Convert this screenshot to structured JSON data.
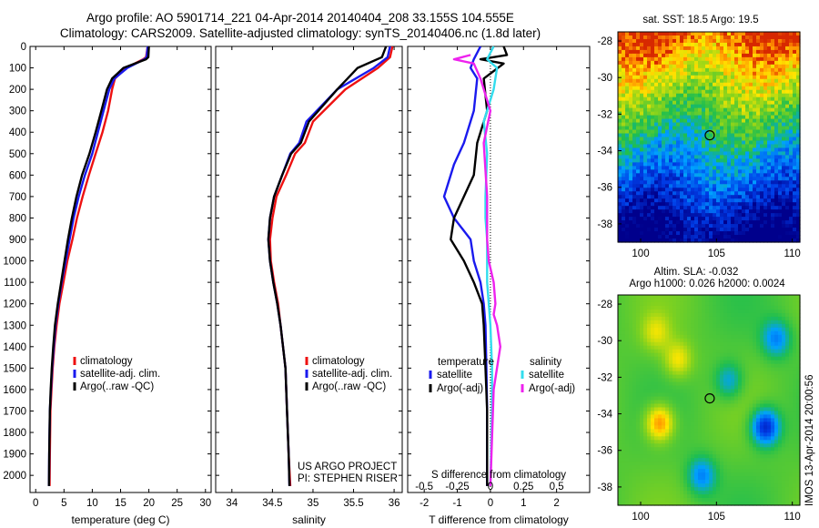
{
  "header": {
    "title_line1": "Argo profile: AO 5901714_221 04-Apr-2014 20140404_208 33.155S 104.555E",
    "title_line2": "Climatology: CARS2009. Satellite-adjusted climatology: synTS_20140406.nc (1.8d later)"
  },
  "stamp": "IMOS 13-Apr-2014 20:00:56",
  "project_note": [
    "US ARGO PROJECT",
    "PI: STEPHEN RISER"
  ],
  "colors": {
    "climatology": "#ee1111",
    "satellite": "#1a1aee",
    "argo": "#000000",
    "salinity_satellite": "#33ddee",
    "salinity_argo": "#ee22ee"
  },
  "chart_data": [
    {
      "type": "line",
      "name": "temperature-profile",
      "xlabel": "temperature (deg C)",
      "xlim": [
        -1,
        31
      ],
      "xticks": [
        0,
        5,
        10,
        15,
        20,
        25,
        30
      ],
      "ylim": [
        2080,
        0
      ],
      "yticks": [
        0,
        100,
        200,
        300,
        400,
        500,
        600,
        700,
        800,
        900,
        1000,
        1100,
        1200,
        1300,
        1400,
        1500,
        1600,
        1700,
        1800,
        1900,
        2000
      ],
      "legend": [
        "climatology",
        "satellite-adj. clim.",
        "Argo(..raw -QC)"
      ],
      "series": [
        {
          "name": "climatology",
          "color": "#ee1111",
          "x": [
            19.8,
            19.5,
            19.0,
            16.0,
            14.0,
            13.5,
            12.8,
            11.8,
            10.6,
            9.4,
            8.3,
            7.3,
            6.5,
            5.6,
            4.9,
            4.2,
            3.7,
            3.3,
            3.0,
            2.8,
            2.6,
            2.5,
            2.45
          ],
          "y": [
            0,
            50,
            60,
            100,
            150,
            200,
            300,
            400,
            500,
            600,
            700,
            800,
            900,
            1000,
            1100,
            1200,
            1300,
            1400,
            1500,
            1600,
            1700,
            1900,
            2050
          ]
        },
        {
          "name": "satellite-adj. clim.",
          "color": "#1a1aee",
          "x": [
            19.8,
            19.6,
            19.2,
            16.2,
            13.9,
            13.0,
            12.0,
            11.0,
            10.0,
            8.7,
            7.6,
            6.7,
            6.0,
            5.3,
            4.6,
            4.0,
            3.5,
            3.2,
            2.9,
            2.7,
            2.5,
            2.4,
            2.35
          ],
          "y": [
            0,
            50,
            60,
            100,
            150,
            200,
            300,
            400,
            500,
            600,
            700,
            800,
            900,
            1000,
            1100,
            1200,
            1300,
            1400,
            1500,
            1600,
            1700,
            1900,
            2050
          ]
        },
        {
          "name": "Argo(..raw -QC)",
          "color": "#000000",
          "x": [
            20.0,
            19.9,
            19.5,
            15.5,
            13.5,
            12.6,
            11.6,
            10.6,
            9.5,
            8.2,
            7.2,
            6.4,
            5.7,
            5.1,
            4.5,
            3.9,
            3.4,
            3.1,
            2.85,
            2.65,
            2.5,
            2.4,
            2.35
          ],
          "y": [
            0,
            50,
            60,
            100,
            150,
            200,
            300,
            400,
            500,
            600,
            700,
            800,
            900,
            1000,
            1100,
            1200,
            1300,
            1400,
            1500,
            1600,
            1700,
            1900,
            2050
          ]
        }
      ]
    },
    {
      "type": "line",
      "name": "salinity-profile",
      "xlabel": "salinity",
      "xlim": [
        33.8,
        36.1
      ],
      "xticks": [
        34,
        34.5,
        35,
        35.5,
        36
      ],
      "xticklabels": [
        "34",
        "34.5",
        "35",
        "35.5",
        "36"
      ],
      "ylim": [
        2080,
        0
      ],
      "legend": [
        "climatology",
        "satellite-adj. clim.",
        "Argo(..raw -QC)"
      ],
      "series": [
        {
          "name": "climatology",
          "color": "#ee1111",
          "x": [
            35.98,
            35.95,
            35.8,
            35.4,
            35.0,
            34.9,
            34.78,
            34.67,
            34.55,
            34.5,
            34.47,
            34.48,
            34.52,
            34.57,
            34.6,
            34.63,
            34.66,
            34.68,
            34.7,
            34.72
          ],
          "y": [
            0,
            50,
            100,
            200,
            350,
            450,
            500,
            600,
            700,
            800,
            900,
            1000,
            1100,
            1200,
            1300,
            1400,
            1500,
            1700,
            1900,
            2050
          ]
        },
        {
          "name": "satellite-adj. clim.",
          "color": "#1a1aee",
          "x": [
            35.95,
            35.92,
            35.75,
            35.3,
            34.92,
            34.83,
            34.72,
            34.62,
            34.52,
            34.47,
            34.45,
            34.47,
            34.51,
            34.56,
            34.6,
            34.63,
            34.66,
            34.68,
            34.7,
            34.71
          ],
          "y": [
            0,
            50,
            100,
            200,
            350,
            450,
            500,
            600,
            700,
            800,
            900,
            1000,
            1100,
            1200,
            1300,
            1400,
            1500,
            1700,
            1900,
            2050
          ]
        },
        {
          "name": "Argo(..raw -QC)",
          "color": "#000000",
          "x": [
            35.9,
            35.85,
            35.55,
            35.3,
            34.95,
            34.85,
            34.73,
            34.62,
            34.52,
            34.47,
            34.45,
            34.47,
            34.51,
            34.56,
            34.6,
            34.63,
            34.66,
            34.68,
            34.7,
            34.71
          ],
          "y": [
            0,
            50,
            100,
            200,
            350,
            450,
            500,
            600,
            700,
            800,
            900,
            1000,
            1100,
            1200,
            1300,
            1400,
            1500,
            1700,
            1900,
            2050
          ]
        }
      ]
    },
    {
      "type": "line",
      "name": "difference-profile",
      "xlabel": "T difference from climatology",
      "xlabel_top": "S difference from climatology",
      "xlim": [
        -2.5,
        3
      ],
      "xticks": [
        -2,
        -1,
        0,
        1,
        2
      ],
      "top_ticklabels": [
        "-0.5",
        "-0.25",
        "0",
        "0.25",
        "0.5"
      ],
      "top_tick_positions": [
        -2,
        -1,
        0,
        1,
        2
      ],
      "ylim": [
        2080,
        0
      ],
      "legend_title_left": "temperature",
      "legend_title_right": "salinity",
      "legend": [
        "satellite",
        "Argo(-adj)",
        "satellite",
        "Argo(-adj)"
      ],
      "series": [
        {
          "name": "T satellite",
          "color": "#1a1aee",
          "x": [
            -0.3,
            -0.5,
            -0.6,
            -0.4,
            -0.5,
            -0.8,
            -1.1,
            -1.4,
            -1.1,
            -0.6,
            -0.5,
            -0.3,
            -0.2,
            -0.15,
            -0.12,
            -0.1,
            -0.1,
            -0.1
          ],
          "y": [
            0,
            60,
            100,
            150,
            300,
            450,
            550,
            700,
            800,
            900,
            1000,
            1100,
            1200,
            1300,
            1500,
            1700,
            1900,
            2050
          ]
        },
        {
          "name": "T Argo(-adj)",
          "color": "#000000",
          "x": [
            0.4,
            0.5,
            -0.3,
            0.4,
            -0.2,
            -0.1,
            -0.4,
            -0.5,
            -1.1,
            -1.2,
            -0.8,
            -0.5,
            -0.25,
            -0.2,
            -0.15,
            -0.1,
            -0.1,
            -0.1
          ],
          "y": [
            0,
            40,
            60,
            80,
            150,
            300,
            450,
            600,
            800,
            900,
            1000,
            1100,
            1200,
            1300,
            1500,
            1700,
            1900,
            2050
          ]
        },
        {
          "name": "S satellite",
          "color": "#33ddee",
          "x": [
            0.1,
            -0.1,
            0.2,
            0.1,
            -0.2,
            -0.1,
            -0.15,
            -0.15,
            -0.1,
            -0.1,
            -0.1,
            -0.05,
            0.0,
            0.05,
            0.05,
            0.0
          ],
          "y": [
            0,
            60,
            100,
            200,
            350,
            500,
            700,
            800,
            900,
            1000,
            1100,
            1200,
            1300,
            1500,
            1700,
            2050
          ]
        },
        {
          "name": "S Argo(-adj)",
          "color": "#ee22ee",
          "x": [
            -0.6,
            -1.1,
            -0.5,
            -0.3,
            0.0,
            -0.2,
            -0.1,
            -0.1,
            -0.05,
            0.1,
            0.15,
            0.1,
            0.2,
            0.3,
            0.1,
            0.0
          ],
          "y": [
            40,
            60,
            80,
            150,
            300,
            450,
            700,
            900,
            1000,
            1100,
            1200,
            1250,
            1300,
            1400,
            1600,
            2050
          ]
        }
      ]
    },
    {
      "type": "heatmap",
      "name": "sst-map",
      "title": "sat. SST: 18.5  Argo: 19.5",
      "xlim": [
        98.5,
        110.5
      ],
      "ylim": [
        -39,
        -27.5
      ],
      "xticks": [
        100,
        105,
        110
      ],
      "yticks": [
        -28,
        -30,
        -32,
        -34,
        -36,
        -38
      ],
      "marker": {
        "lon": 104.555,
        "lat": -33.155
      }
    },
    {
      "type": "heatmap",
      "name": "sla-map",
      "title": "Altim. SLA: -0.032",
      "subtitle": "Argo h1000: 0.026 h2000: 0.0024",
      "xlim": [
        98.5,
        110.5
      ],
      "ylim": [
        -39,
        -27.5
      ],
      "xticks": [
        100,
        105,
        110
      ],
      "yticks": [
        -28,
        -30,
        -32,
        -34,
        -36,
        -38
      ],
      "marker": {
        "lon": 104.555,
        "lat": -33.155
      }
    }
  ]
}
